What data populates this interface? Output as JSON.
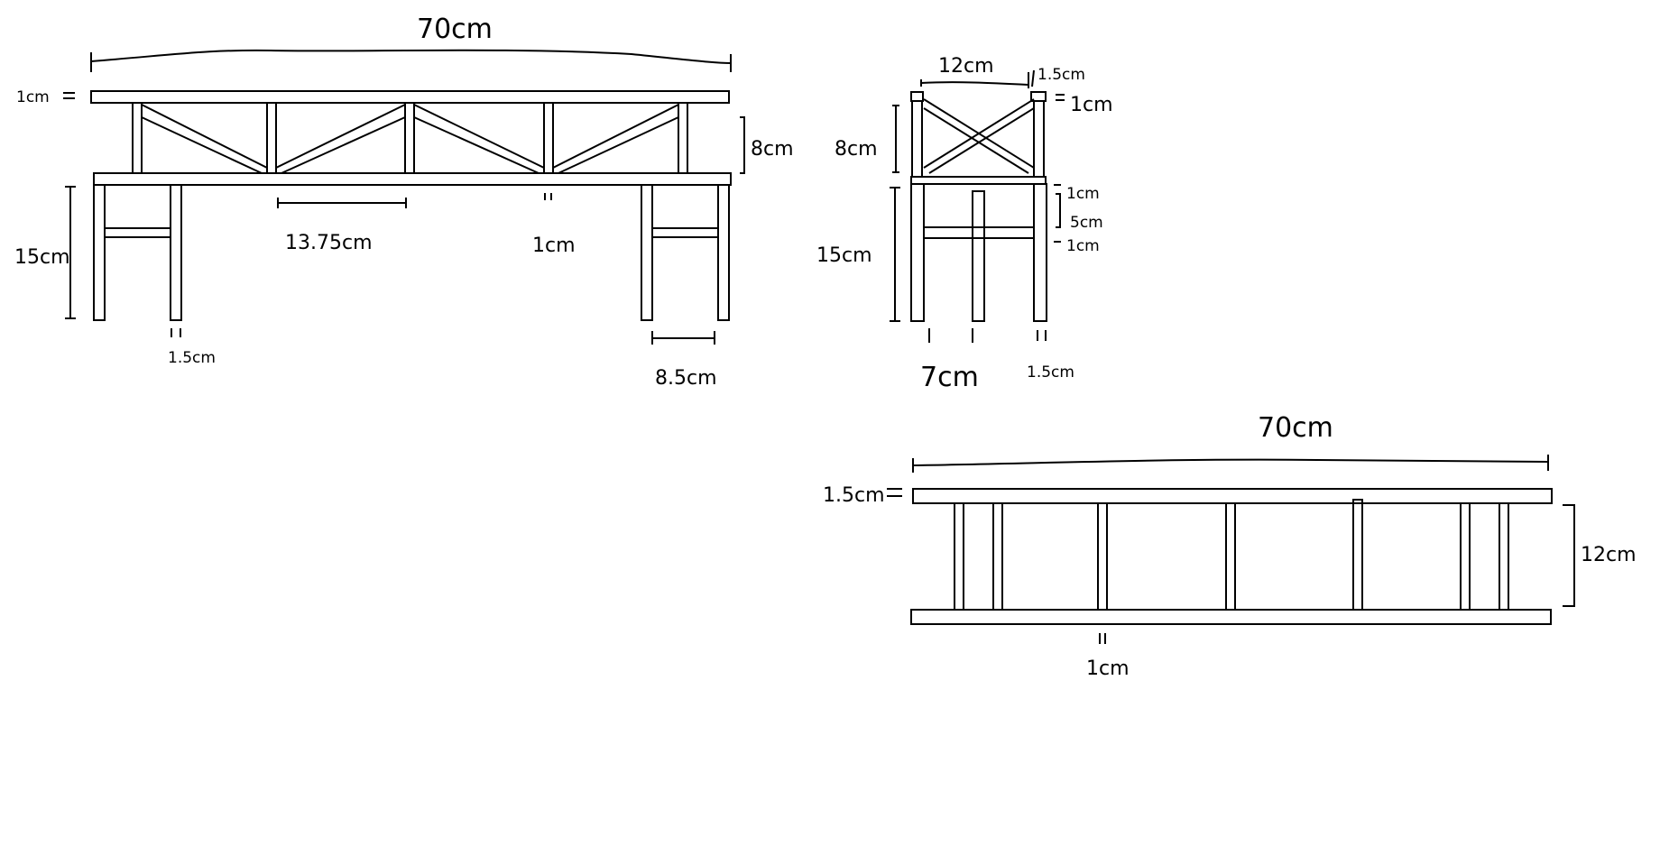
{
  "drawing": {
    "ink_color": "#000000",
    "background": "#ffffff",
    "side_view": {
      "overall_length": "70cm",
      "top_rail_thickness": "1cm",
      "truss_height": "8cm",
      "panel_spacing": "13.75cm",
      "beam_thickness": "1cm",
      "leg_height": "15cm",
      "leg_width": "1.5cm",
      "leg_frame_width": "8.5cm"
    },
    "end_view": {
      "width": "12cm",
      "post_size": "1.5cm",
      "top_rail": "1cm",
      "truss_height": "8cm",
      "gap_1": "1cm",
      "brace_gap": "5cm",
      "gap_2": "1cm",
      "leg_height": "15cm",
      "leg_spacing": "7cm",
      "leg_width": "1.5cm"
    },
    "plan_view": {
      "length": "70cm",
      "rail_width": "1.5cm",
      "depth": "12cm",
      "slat_width": "1cm"
    }
  }
}
